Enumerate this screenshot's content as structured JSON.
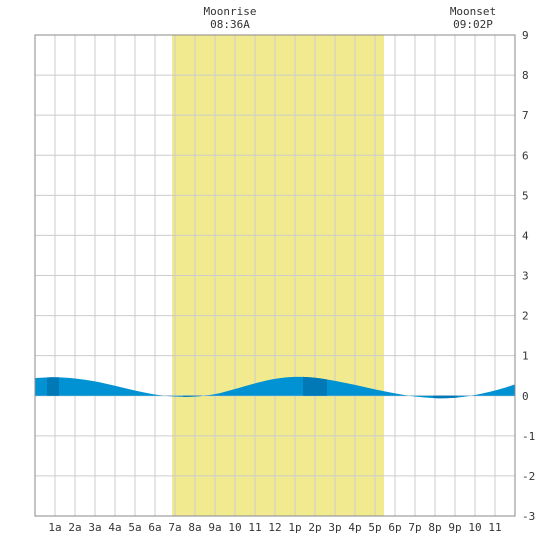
{
  "moon": {
    "rise_label": "Moonrise",
    "rise_time": "08:36A",
    "set_label": "Moonset",
    "set_time": "09:02P"
  },
  "chart_data": {
    "type": "area",
    "x_unit": "hour of day",
    "xlim": [
      0,
      24
    ],
    "ylim": [
      -3,
      9
    ],
    "y_ticks": [
      -3,
      -2,
      -1,
      0,
      1,
      2,
      3,
      4,
      5,
      6,
      7,
      8,
      9
    ],
    "x_ticks": [
      {
        "hour": 1,
        "label": "1a"
      },
      {
        "hour": 2,
        "label": "2a"
      },
      {
        "hour": 3,
        "label": "3a"
      },
      {
        "hour": 4,
        "label": "4a"
      },
      {
        "hour": 5,
        "label": "5a"
      },
      {
        "hour": 6,
        "label": "6a"
      },
      {
        "hour": 7,
        "label": "7a"
      },
      {
        "hour": 8,
        "label": "8a"
      },
      {
        "hour": 9,
        "label": "9a"
      },
      {
        "hour": 10,
        "label": "10"
      },
      {
        "hour": 11,
        "label": "11"
      },
      {
        "hour": 12,
        "label": "12"
      },
      {
        "hour": 13,
        "label": "1p"
      },
      {
        "hour": 14,
        "label": "2p"
      },
      {
        "hour": 15,
        "label": "3p"
      },
      {
        "hour": 16,
        "label": "4p"
      },
      {
        "hour": 17,
        "label": "5p"
      },
      {
        "hour": 18,
        "label": "6p"
      },
      {
        "hour": 19,
        "label": "7p"
      },
      {
        "hour": 20,
        "label": "8p"
      },
      {
        "hour": 21,
        "label": "9p"
      },
      {
        "hour": 22,
        "label": "10"
      },
      {
        "hour": 23,
        "label": "11"
      }
    ],
    "daylight": {
      "start": 6.85,
      "end": 17.45
    },
    "tide": {
      "hours": [
        0,
        1,
        2,
        3,
        4,
        5,
        6,
        7,
        8,
        9,
        10,
        11,
        12,
        13,
        14,
        15,
        16,
        17,
        18,
        19,
        20,
        21,
        22,
        23,
        24
      ],
      "heights": [
        0.44,
        0.46,
        0.43,
        0.36,
        0.25,
        0.13,
        0.03,
        -0.02,
        -0.02,
        0.04,
        0.17,
        0.31,
        0.42,
        0.47,
        0.45,
        0.37,
        0.27,
        0.16,
        0.06,
        -0.02,
        -0.06,
        -0.05,
        0.02,
        0.13,
        0.28
      ]
    },
    "grid": true,
    "colors": {
      "daylight": "#f2ea8f",
      "water": "#0092d3",
      "water_dark": "#0079b6",
      "grid": "#cccccc",
      "frame": "#888888"
    }
  }
}
